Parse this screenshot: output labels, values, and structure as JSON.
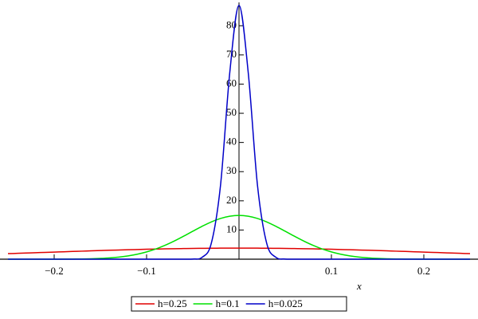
{
  "chart_data": {
    "type": "line",
    "x_label": "x",
    "x": [
      -0.25,
      -0.24,
      -0.23,
      -0.22,
      -0.21,
      -0.2,
      -0.19,
      -0.18,
      -0.17,
      -0.16,
      -0.15,
      -0.14,
      -0.13,
      -0.12,
      -0.11,
      -0.1,
      -0.09,
      -0.08,
      -0.07,
      -0.06,
      -0.05,
      -0.04,
      -0.03,
      -0.02,
      -0.01,
      0,
      0.01,
      0.02,
      0.03,
      0.04,
      0.05,
      0.06,
      0.07,
      0.08,
      0.09,
      0.1,
      0.11,
      0.12,
      0.13,
      0.14,
      0.15,
      0.16,
      0.17,
      0.18,
      0.19,
      0.2,
      0.21,
      0.22,
      0.23,
      0.24,
      0.25
    ],
    "series": [
      {
        "name": "h=0.25",
        "color": "#e00000",
        "values": [
          1.9,
          2.0,
          2.11,
          2.22,
          2.33,
          2.44,
          2.54,
          2.65,
          2.75,
          2.86,
          2.96,
          3.06,
          3.15,
          3.24,
          3.32,
          3.4,
          3.47,
          3.54,
          3.6,
          3.65,
          3.7,
          3.73,
          3.76,
          3.78,
          3.8,
          3.8,
          3.8,
          3.78,
          3.76,
          3.73,
          3.7,
          3.65,
          3.6,
          3.54,
          3.47,
          3.4,
          3.32,
          3.24,
          3.15,
          3.06,
          2.96,
          2.86,
          2.75,
          2.65,
          2.54,
          2.44,
          2.33,
          2.22,
          2.11,
          2.0,
          1.9
        ]
      },
      {
        "name": "h=0.1",
        "color": "#00e000",
        "values": [
          0,
          0,
          0,
          0,
          0,
          0.01,
          0.02,
          0.05,
          0.08,
          0.15,
          0.27,
          0.45,
          0.73,
          1.14,
          1.72,
          2.5,
          3.51,
          4.76,
          6.23,
          7.87,
          9.58,
          11.26,
          12.77,
          13.96,
          14.73,
          15,
          14.73,
          13.96,
          12.77,
          11.26,
          9.58,
          7.87,
          6.23,
          4.76,
          3.51,
          2.5,
          1.72,
          1.14,
          0.73,
          0.45,
          0.27,
          0.15,
          0.08,
          0.05,
          0.02,
          0.01,
          0,
          0,
          0,
          0,
          0
        ]
      },
      {
        "name": "h=0.025",
        "color": "#0000c8",
        "values": [
          0,
          0,
          0,
          0,
          0,
          0,
          0,
          0,
          0,
          0,
          0,
          0,
          0,
          0,
          0,
          0,
          0,
          0,
          0,
          0,
          0.05,
          0.62,
          5.4,
          25.3,
          63.9,
          87,
          63.9,
          25.3,
          5.4,
          0.62,
          0.05,
          0,
          0,
          0,
          0,
          0,
          0,
          0,
          0,
          0,
          0,
          0,
          0,
          0,
          0,
          0,
          0,
          0,
          0,
          0,
          0
        ]
      }
    ],
    "xlim": [
      -0.25,
      0.25
    ],
    "ylim": [
      0,
      88
    ],
    "xticks": [
      {
        "value": -0.2,
        "label": "−0.2"
      },
      {
        "value": -0.1,
        "label": "−0.1"
      },
      0.1,
      0.2
    ],
    "yticks": [
      10,
      20,
      30,
      40,
      50,
      60,
      70,
      80
    ],
    "legend": "bottom"
  }
}
